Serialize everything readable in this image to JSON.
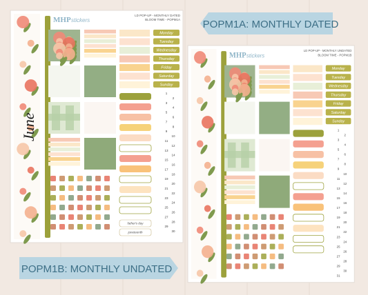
{
  "labels": {
    "top": "POPM1A: MONTHLY DATED",
    "bottom": "POPM1B: MONTHLY UNDATED"
  },
  "sheets": [
    {
      "logo": "MHP",
      "logo_sub": "stickers",
      "title": "LD POP-UP - MONTHLY DATED",
      "subtitle": "BLOOM TIME - POPM1A",
      "month": "June",
      "weekdays": [
        "Monday",
        "Tuesday",
        "Wednesday",
        "Thursday",
        "Friday",
        "Saturday",
        "Sunday"
      ],
      "dates": [
        "1",
        "2",
        "3",
        "4",
        "5",
        "6",
        "7",
        "8",
        "9",
        "10",
        "11",
        "12",
        "13",
        "14",
        "15",
        "16",
        "17",
        "18",
        "19",
        "20",
        "21",
        "22",
        "23",
        "24",
        "25",
        "26",
        "27",
        "28",
        "29",
        "30"
      ],
      "notes": [
        "father's day",
        "juneteenth"
      ]
    },
    {
      "logo": "MHP",
      "logo_sub": "stickers",
      "title": "LD POP-UP - MONTHLY UNDATED",
      "subtitle": "BLOOM TIME - POPM1B",
      "weekdays": [
        "Monday",
        "Tuesday",
        "Wednesday",
        "Thursday",
        "Friday",
        "Saturday",
        "Sunday"
      ],
      "dates": [
        "1",
        "2",
        "3",
        "4",
        "5",
        "6",
        "7",
        "8",
        "9",
        "10",
        "11",
        "12",
        "13",
        "14",
        "15",
        "16",
        "17",
        "18",
        "19",
        "20",
        "21",
        "22",
        "23",
        "24",
        "25",
        "26",
        "27",
        "28",
        "29",
        "30",
        "31"
      ]
    }
  ]
}
